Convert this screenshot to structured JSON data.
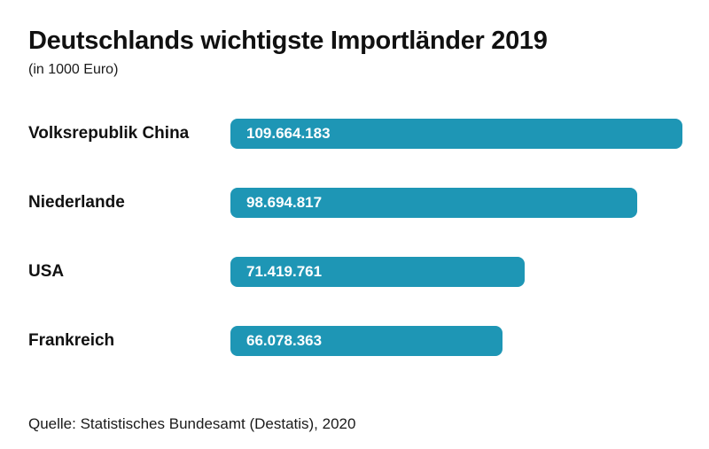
{
  "chart_data": {
    "type": "bar",
    "orientation": "horizontal",
    "title": "Deutschlands wichtigste Importländer 2019",
    "subtitle": "(in 1000 Euro)",
    "categories": [
      "Volksrepublik China",
      "Niederlande",
      "USA",
      "Frankreich"
    ],
    "values": [
      109664183,
      98694817,
      71419761,
      66078363
    ],
    "value_labels": [
      "109.664.183",
      "98.694.817",
      "71.419.761",
      "66.078.363"
    ],
    "xlabel": "",
    "ylabel": "",
    "xlim": [
      0,
      109664183
    ],
    "grid": false,
    "legend": false,
    "bar_color": "#1e96b5",
    "source": "Quelle: Statistisches Bundesamt (Destatis), 2020"
  }
}
